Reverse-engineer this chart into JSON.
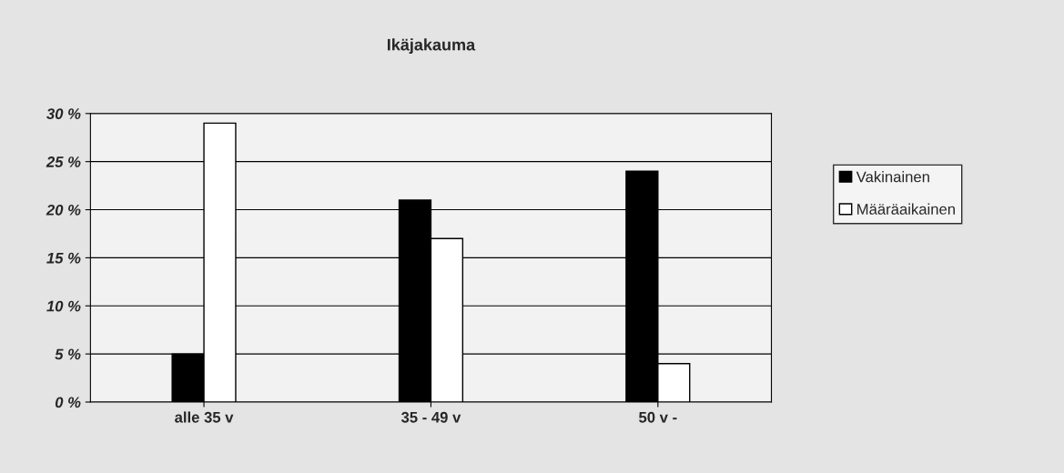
{
  "chart_data": {
    "type": "bar",
    "title": "Ikäjakauma",
    "categories": [
      "alle 35 v",
      "35 - 49 v",
      "50 v -"
    ],
    "series": [
      {
        "name": "Vakinainen",
        "color": "#000000",
        "values": [
          5,
          21,
          24
        ]
      },
      {
        "name": "Määräaikainen",
        "color": "#ffffff",
        "values": [
          29,
          17,
          4
        ]
      }
    ],
    "ylim": [
      0,
      30
    ],
    "yticks": [
      {
        "value": 0,
        "label": "0 %"
      },
      {
        "value": 5,
        "label": "5 %"
      },
      {
        "value": 10,
        "label": "10 %"
      },
      {
        "value": 15,
        "label": "15 %"
      },
      {
        "value": 20,
        "label": "20 %"
      },
      {
        "value": 25,
        "label": "25 %"
      },
      {
        "value": 30,
        "label": "30 %"
      }
    ],
    "grid": "y",
    "legend": "right"
  }
}
